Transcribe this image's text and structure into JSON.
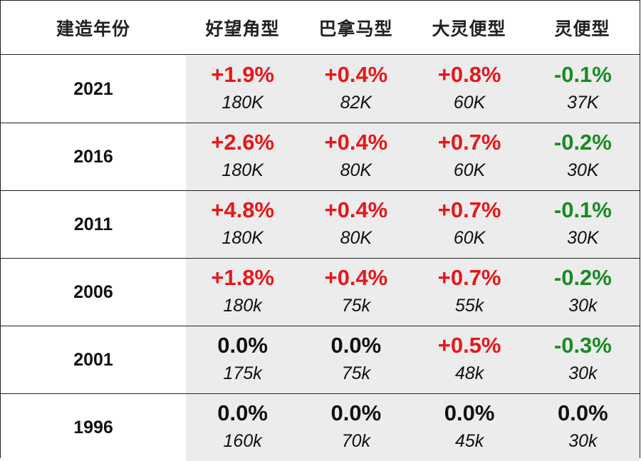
{
  "header": {
    "year_label": "建造年份",
    "columns": [
      "好望角型",
      "巴拿马型",
      "大灵便型",
      "灵便型"
    ]
  },
  "rows": [
    {
      "year": "2021",
      "cells": [
        {
          "pct": "+1.9%",
          "sign": "pos",
          "vol": "180K"
        },
        {
          "pct": "+0.4%",
          "sign": "pos",
          "vol": "82K"
        },
        {
          "pct": "+0.8%",
          "sign": "pos",
          "vol": "60K"
        },
        {
          "pct": "-0.1%",
          "sign": "neg",
          "vol": "37K"
        }
      ]
    },
    {
      "year": "2016",
      "cells": [
        {
          "pct": "+2.6%",
          "sign": "pos",
          "vol": "180K"
        },
        {
          "pct": "+0.4%",
          "sign": "pos",
          "vol": "80K"
        },
        {
          "pct": "+0.7%",
          "sign": "pos",
          "vol": "60K"
        },
        {
          "pct": "-0.2%",
          "sign": "neg",
          "vol": "30K"
        }
      ]
    },
    {
      "year": "2011",
      "cells": [
        {
          "pct": "+4.8%",
          "sign": "pos",
          "vol": "180K"
        },
        {
          "pct": "+0.4%",
          "sign": "pos",
          "vol": "80K"
        },
        {
          "pct": "+0.7%",
          "sign": "pos",
          "vol": "60K"
        },
        {
          "pct": "-0.1%",
          "sign": "neg",
          "vol": "30K"
        }
      ]
    },
    {
      "year": "2006",
      "cells": [
        {
          "pct": "+1.8%",
          "sign": "pos",
          "vol": "180k"
        },
        {
          "pct": "+0.4%",
          "sign": "pos",
          "vol": "75k"
        },
        {
          "pct": "+0.7%",
          "sign": "pos",
          "vol": "55k"
        },
        {
          "pct": "-0.2%",
          "sign": "neg",
          "vol": "30k"
        }
      ]
    },
    {
      "year": "2001",
      "cells": [
        {
          "pct": "0.0%",
          "sign": "zero",
          "vol": "175k"
        },
        {
          "pct": "0.0%",
          "sign": "zero",
          "vol": "75k"
        },
        {
          "pct": "+0.5%",
          "sign": "pos",
          "vol": "48k"
        },
        {
          "pct": "-0.3%",
          "sign": "neg",
          "vol": "30k"
        }
      ]
    },
    {
      "year": "1996",
      "cells": [
        {
          "pct": "0.0%",
          "sign": "zero",
          "vol": "160k"
        },
        {
          "pct": "0.0%",
          "sign": "zero",
          "vol": "70k"
        },
        {
          "pct": "0.0%",
          "sign": "zero",
          "vol": "45k"
        },
        {
          "pct": "0.0%",
          "sign": "zero",
          "vol": "30k"
        }
      ]
    }
  ],
  "colors": {
    "positive": "#e8161b",
    "negative": "#1a8a24",
    "zero": "#111111",
    "cell_background": "#ececec",
    "border": "#222222"
  }
}
